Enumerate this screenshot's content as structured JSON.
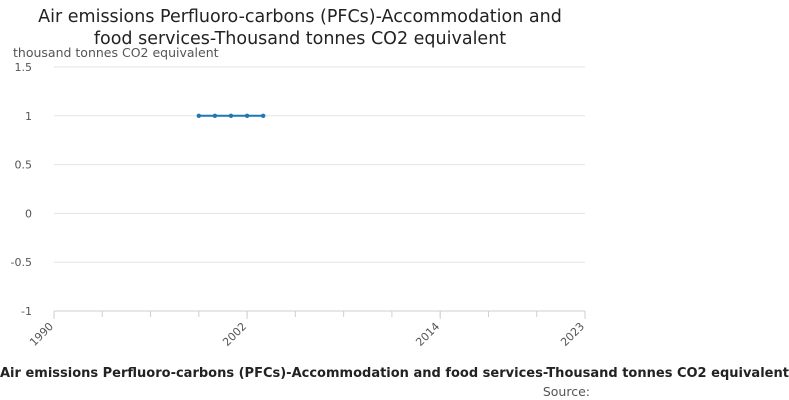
{
  "chart_data": {
    "type": "line",
    "title": "Air emissions Perfluoro-carbons (PFCs)-Accommodation and food services-Thousand tonnes CO2 equivalent",
    "title_lines": [
      "Air emissions Perfluoro-carbons (PFCs)-Accommodation and",
      "food services-Thousand tonnes CO2 equivalent"
    ],
    "ylabel": "thousand tonnes CO2 equivalent",
    "xlabel": "",
    "x_ticks": [
      "1990",
      "2002",
      "2014",
      "2023"
    ],
    "xlim": [
      1990,
      2023
    ],
    "y_ticks": [
      "1.5",
      "1",
      "0.5",
      "0",
      "-0.5",
      "-1"
    ],
    "ylim": [
      -1,
      1.5
    ],
    "grid": true,
    "legend_position": "bottom",
    "series": [
      {
        "name": "Air emissions Perfluoro-carbons (PFCs)-Accommodation and food services-Thousand tonnes CO2 equivalent",
        "color": "#1f77b4",
        "x": [
          1999,
          2000,
          2001,
          2002,
          2003
        ],
        "values": [
          1,
          1,
          1,
          1,
          1
        ]
      }
    ]
  },
  "source_label": "Source:"
}
